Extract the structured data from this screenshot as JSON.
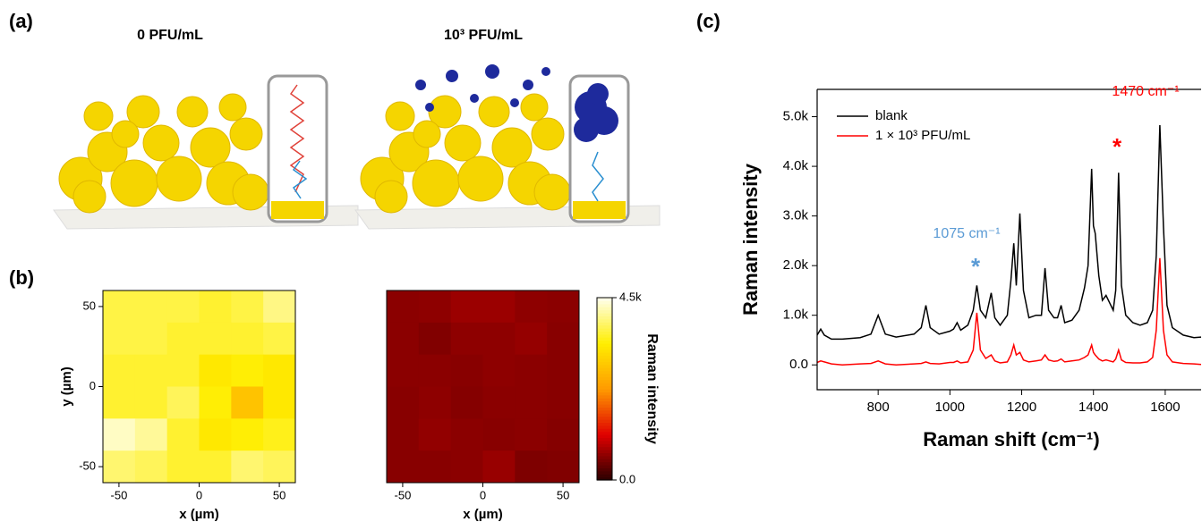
{
  "panel_labels": [
    "(a)",
    "(b)",
    "(c)"
  ],
  "illustration_labels": [
    "0 PFU/mL",
    "10³ PFU/mL"
  ],
  "chart_data": [
    {
      "type": "heatmap",
      "x": [
        -50,
        -30,
        -10,
        10,
        30,
        50
      ],
      "y": [
        50,
        30,
        10,
        -10,
        -30,
        -50
      ],
      "z": [
        [
          3700,
          3700,
          3700,
          3600,
          3700,
          4000
        ],
        [
          3700,
          3700,
          3600,
          3600,
          3600,
          3700
        ],
        [
          3600,
          3600,
          3600,
          3300,
          3400,
          3300
        ],
        [
          3600,
          3600,
          3800,
          3400,
          2800,
          3300
        ],
        [
          4300,
          4100,
          3600,
          3300,
          3400,
          3500
        ],
        [
          3900,
          3800,
          3600,
          3600,
          3900,
          3800
        ]
      ],
      "xlim": [
        -60,
        60
      ],
      "ylim": [
        -60,
        60
      ],
      "xticks": [
        -50,
        0,
        50
      ],
      "yticks": [
        -50,
        0,
        50
      ],
      "xlabel": "x (µm)",
      "ylabel": "y (µm)",
      "zlim": [
        0,
        4500
      ],
      "colorscale": [
        "#2a0000",
        "#e00000",
        "#ff9a00",
        "#ffee00",
        "#ffffee"
      ]
    },
    {
      "type": "heatmap",
      "x": [
        -50,
        -30,
        -10,
        10,
        30,
        50
      ],
      "y": [
        50,
        30,
        10,
        -10,
        -30,
        -50
      ],
      "z": [
        [
          600,
          620,
          700,
          700,
          620,
          600
        ],
        [
          600,
          540,
          620,
          620,
          660,
          580
        ],
        [
          600,
          600,
          580,
          620,
          600,
          580
        ],
        [
          580,
          620,
          560,
          600,
          600,
          580
        ],
        [
          580,
          640,
          600,
          580,
          600,
          560
        ],
        [
          580,
          580,
          600,
          680,
          520,
          540
        ]
      ],
      "xlim": [
        -60,
        60
      ],
      "ylim": [
        -60,
        60
      ],
      "xticks": [
        -50,
        0,
        50
      ],
      "xlabel": "x (µm)",
      "zlim": [
        0,
        4500
      ],
      "colorscale": [
        "#2a0000",
        "#e00000",
        "#ff9a00",
        "#ffee00",
        "#ffffee"
      ],
      "colorbar": {
        "label": "Raman intensity",
        "ticks": [
          {
            "value": 4500,
            "label": "4.5k"
          },
          {
            "value": 0,
            "label": "0.0"
          }
        ]
      }
    },
    {
      "type": "line",
      "xlabel": "Raman shift (cm⁻¹)",
      "ylabel": "Raman intensity",
      "xlim": [
        630,
        1700
      ],
      "ylim": [
        -500,
        5550
      ],
      "xticks": [
        800,
        1000,
        1200,
        1400,
        1600
      ],
      "yticks": [
        {
          "value": 0,
          "label": "0.0"
        },
        {
          "value": 1000,
          "label": "1.0k"
        },
        {
          "value": 2000,
          "label": "2.0k"
        },
        {
          "value": 3000,
          "label": "3.0k"
        },
        {
          "value": 4000,
          "label": "4.0k"
        },
        {
          "value": 5000,
          "label": "5.0k"
        }
      ],
      "x": [
        630,
        640,
        650,
        670,
        700,
        750,
        780,
        800,
        820,
        850,
        900,
        920,
        933,
        945,
        970,
        1000,
        1010,
        1020,
        1030,
        1050,
        1065,
        1075,
        1085,
        1100,
        1115,
        1125,
        1140,
        1160,
        1170,
        1178,
        1185,
        1195,
        1205,
        1220,
        1240,
        1255,
        1265,
        1275,
        1290,
        1300,
        1310,
        1320,
        1340,
        1360,
        1375,
        1385,
        1395,
        1400,
        1405,
        1415,
        1425,
        1435,
        1445,
        1455,
        1462,
        1470,
        1478,
        1490,
        1510,
        1530,
        1550,
        1565,
        1575,
        1585,
        1595,
        1605,
        1620,
        1650,
        1680,
        1700
      ],
      "series": [
        {
          "name": "blank",
          "color": "#000000",
          "values": [
            600,
            720,
            600,
            520,
            520,
            550,
            620,
            1000,
            620,
            560,
            620,
            750,
            1200,
            750,
            620,
            680,
            720,
            850,
            700,
            800,
            1100,
            1600,
            1100,
            950,
            1450,
            950,
            800,
            1000,
            1700,
            2450,
            1600,
            3050,
            1500,
            950,
            1000,
            1000,
            1950,
            1100,
            950,
            950,
            1200,
            850,
            900,
            1100,
            1550,
            2000,
            3950,
            2800,
            2650,
            1800,
            1300,
            1400,
            1250,
            1100,
            1500,
            3870,
            1600,
            1000,
            850,
            800,
            850,
            1100,
            2200,
            4830,
            2800,
            1200,
            750,
            600,
            550,
            560
          ]
        },
        {
          "name": "1 × 10³ PFU/mL",
          "color": "#ff0000",
          "values": [
            50,
            80,
            60,
            20,
            0,
            20,
            30,
            80,
            20,
            0,
            20,
            30,
            60,
            30,
            20,
            50,
            50,
            80,
            40,
            60,
            300,
            1050,
            300,
            130,
            200,
            80,
            40,
            60,
            200,
            400,
            200,
            250,
            100,
            60,
            80,
            100,
            200,
            100,
            70,
            80,
            120,
            60,
            80,
            100,
            150,
            200,
            400,
            250,
            200,
            120,
            80,
            100,
            80,
            60,
            120,
            300,
            100,
            50,
            40,
            40,
            60,
            150,
            700,
            2150,
            700,
            200,
            60,
            30,
            20,
            10
          ]
        }
      ],
      "annotations": [
        {
          "text": "1075 cm⁻¹",
          "color": "#5b9bd5"
        },
        {
          "text": "*",
          "color": "#5b9bd5"
        },
        {
          "text": "1470 cm⁻¹",
          "color": "#ff0000"
        },
        {
          "text": "*",
          "color": "#ff0000"
        }
      ]
    }
  ]
}
